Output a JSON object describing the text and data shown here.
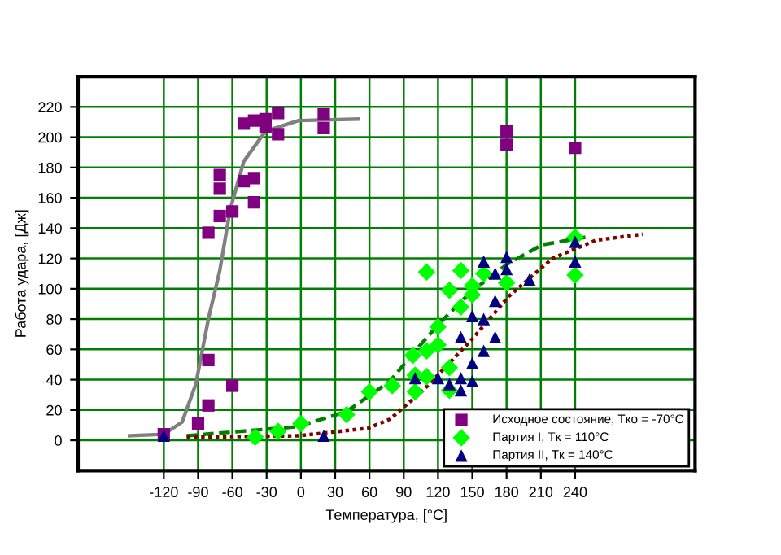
{
  "chart_data": {
    "type": "scatter",
    "xlabel": "Температура, [°C]",
    "ylabel": "Работа удара, [Дж]",
    "xlim": [
      -195,
      345
    ],
    "ylim": [
      -20,
      240
    ],
    "xticks": [
      -120,
      -90,
      -60,
      -30,
      0,
      30,
      60,
      90,
      120,
      150,
      180,
      210,
      240
    ],
    "yticks": [
      0,
      20,
      40,
      60,
      80,
      100,
      120,
      140,
      160,
      180,
      200,
      220
    ],
    "grid": true,
    "legend": "bottom right",
    "series": [
      {
        "name": "Исходное состояние, Tко = -70°C",
        "marker": "square",
        "color": "#800080",
        "x": [
          -120,
          -90,
          -81,
          -81,
          -60,
          -81,
          -71,
          -60,
          -41,
          -71,
          -71,
          -50,
          -41,
          -50,
          -41,
          -31,
          -31,
          -20,
          -20,
          20,
          20,
          180,
          180,
          240
        ],
        "values": [
          4,
          11,
          23,
          53,
          36,
          137,
          148,
          151,
          157,
          166,
          175,
          171,
          173,
          209,
          211,
          212,
          207,
          216,
          202,
          215,
          206,
          204,
          195,
          193
        ]
      },
      {
        "name": "Партия I, Tк = 110°C",
        "marker": "diamond",
        "color": "#00ff00",
        "x": [
          -40,
          -20,
          0,
          40,
          60,
          80,
          100,
          100,
          98,
          110,
          110,
          120,
          120,
          110,
          130,
          130,
          130,
          140,
          140,
          150,
          150,
          160,
          180,
          240,
          240
        ],
        "values": [
          2,
          6,
          11,
          17,
          32,
          36,
          32,
          43,
          56,
          42,
          59,
          63,
          75,
          111,
          33,
          48,
          99,
          112,
          88,
          102,
          96,
          110,
          104,
          134,
          109
        ]
      },
      {
        "name": "Партия II, Tк = 140°C",
        "marker": "triangle",
        "color": "#000080",
        "x": [
          -120,
          20,
          100,
          120,
          130,
          140,
          140,
          150,
          150,
          140,
          160,
          170,
          150,
          160,
          170,
          160,
          170,
          180,
          180,
          200,
          240,
          240
        ],
        "values": [
          3,
          3,
          41,
          41,
          37,
          33,
          41,
          39,
          51,
          68,
          59,
          68,
          82,
          80,
          92,
          118,
          110,
          121,
          113,
          106,
          131,
          118
        ]
      },
      {
        "type": "line",
        "line_style": "solid",
        "color": "#808080",
        "x": [
          -150,
          -120,
          -104,
          -92,
          -81,
          -71,
          -62,
          -50,
          -31,
          -2,
          50
        ],
        "values": [
          3,
          4,
          12,
          37,
          80,
          112,
          152,
          184,
          204,
          211,
          212
        ]
      },
      {
        "type": "line",
        "line_style": "dashed",
        "color": "#008000",
        "x": [
          -100,
          -3,
          40,
          78,
          100,
          121,
          149,
          180,
          211,
          249
        ],
        "values": [
          3,
          9,
          19,
          39,
          59,
          77,
          98,
          116,
          129,
          134
        ]
      },
      {
        "type": "line",
        "line_style": "dotted",
        "color": "#800000",
        "x": [
          -100,
          -2,
          59,
          78,
          107,
          149,
          182,
          220,
          258,
          299
        ],
        "values": [
          2,
          3,
          8,
          14,
          33,
          66,
          95,
          120,
          132,
          136
        ]
      }
    ]
  }
}
